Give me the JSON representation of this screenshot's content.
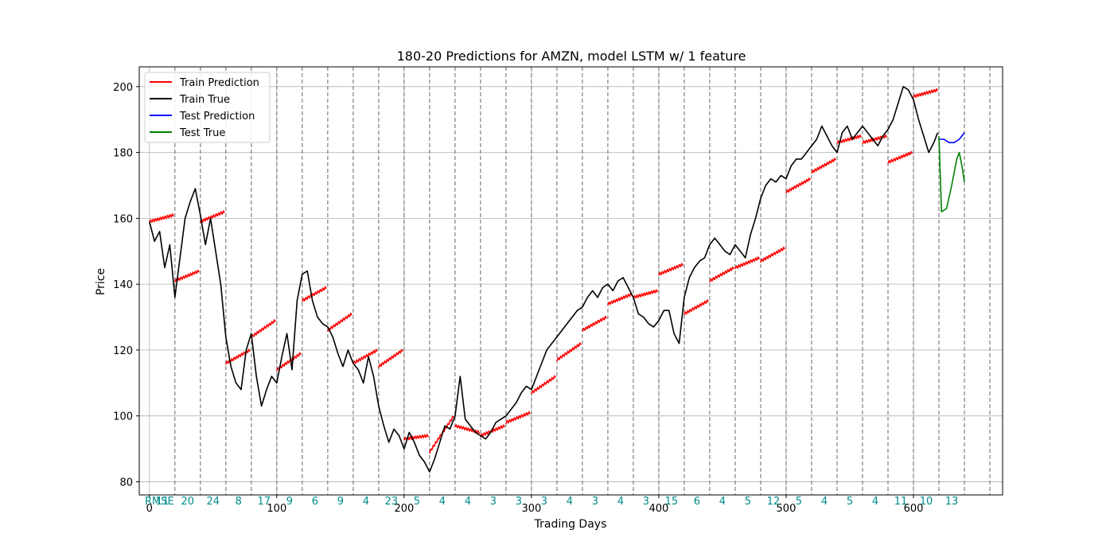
{
  "chart_data": {
    "type": "line",
    "title": "180-20 Predictions for AMZN, model LSTM w/ 1 feature",
    "xlabel": "Trading Days",
    "ylabel": "Price",
    "xlim": [
      -8,
      670
    ],
    "ylim": [
      76,
      206
    ],
    "xticks": [
      0,
      100,
      200,
      300,
      400,
      500,
      600
    ],
    "yticks": [
      80,
      100,
      120,
      140,
      160,
      180,
      200
    ],
    "grid": true,
    "legend_position": "top-left",
    "window_boundaries": [
      20,
      40,
      60,
      80,
      100,
      120,
      140,
      160,
      180,
      200,
      220,
      240,
      260,
      280,
      300,
      320,
      340,
      360,
      380,
      400,
      420,
      440,
      460,
      480,
      500,
      520,
      540,
      560,
      580,
      600,
      620,
      640,
      660
    ],
    "rmse_label": "RMSE",
    "rmse_values": [
      "11",
      "20",
      "24",
      "8",
      "17",
      "9",
      "6",
      "9",
      "4",
      "23",
      "5",
      "4",
      "4",
      "3",
      "3",
      "3",
      "4",
      "3",
      "4",
      "3",
      "15",
      "6",
      "4",
      "5",
      "12",
      "5",
      "4",
      "5",
      "4",
      "11",
      "10",
      "13"
    ],
    "series": [
      {
        "name": "Train Prediction",
        "color": "#ff0000",
        "points": [
          [
            0,
            159
          ],
          [
            19,
            161
          ],
          [
            20,
            141
          ],
          [
            39,
            144
          ],
          [
            40,
            159
          ],
          [
            59,
            162
          ],
          [
            60,
            116
          ],
          [
            79,
            120
          ],
          [
            80,
            124
          ],
          [
            99,
            129
          ],
          [
            100,
            114
          ],
          [
            119,
            119
          ],
          [
            120,
            135
          ],
          [
            139,
            139
          ],
          [
            140,
            126
          ],
          [
            159,
            131
          ],
          [
            160,
            116
          ],
          [
            179,
            120
          ],
          [
            180,
            115
          ],
          [
            199,
            120
          ],
          [
            200,
            93
          ],
          [
            219,
            94
          ],
          [
            220,
            89
          ],
          [
            239,
            100
          ],
          [
            240,
            97
          ],
          [
            259,
            95
          ],
          [
            260,
            94
          ],
          [
            279,
            97
          ],
          [
            280,
            98
          ],
          [
            299,
            101
          ],
          [
            300,
            107
          ],
          [
            319,
            112
          ],
          [
            320,
            117
          ],
          [
            339,
            122
          ],
          [
            340,
            126
          ],
          [
            359,
            130
          ],
          [
            360,
            134
          ],
          [
            379,
            137
          ],
          [
            380,
            136
          ],
          [
            399,
            138
          ],
          [
            400,
            143
          ],
          [
            419,
            146
          ],
          [
            420,
            131
          ],
          [
            439,
            135
          ],
          [
            440,
            141
          ],
          [
            459,
            145
          ],
          [
            460,
            145
          ],
          [
            479,
            148
          ],
          [
            480,
            147
          ],
          [
            499,
            151
          ],
          [
            500,
            168
          ],
          [
            519,
            172
          ],
          [
            520,
            174
          ],
          [
            539,
            178
          ],
          [
            540,
            183
          ],
          [
            559,
            185
          ],
          [
            560,
            183
          ],
          [
            579,
            185
          ],
          [
            580,
            177
          ],
          [
            599,
            180
          ],
          [
            600,
            197
          ],
          [
            619,
            199
          ]
        ]
      },
      {
        "name": "Train True",
        "color": "#000000",
        "points": [
          [
            0,
            159
          ],
          [
            4,
            153
          ],
          [
            8,
            156
          ],
          [
            12,
            145
          ],
          [
            16,
            152
          ],
          [
            20,
            136
          ],
          [
            24,
            148
          ],
          [
            28,
            160
          ],
          [
            32,
            165
          ],
          [
            36,
            169
          ],
          [
            40,
            161
          ],
          [
            44,
            152
          ],
          [
            48,
            160
          ],
          [
            52,
            150
          ],
          [
            56,
            140
          ],
          [
            60,
            124
          ],
          [
            64,
            115
          ],
          [
            68,
            110
          ],
          [
            72,
            108
          ],
          [
            76,
            120
          ],
          [
            80,
            125
          ],
          [
            84,
            112
          ],
          [
            88,
            103
          ],
          [
            92,
            108
          ],
          [
            96,
            112
          ],
          [
            100,
            110
          ],
          [
            104,
            118
          ],
          [
            108,
            125
          ],
          [
            112,
            114
          ],
          [
            116,
            135
          ],
          [
            120,
            143
          ],
          [
            124,
            144
          ],
          [
            128,
            135
          ],
          [
            132,
            130
          ],
          [
            136,
            128
          ],
          [
            140,
            127
          ],
          [
            144,
            124
          ],
          [
            148,
            119
          ],
          [
            152,
            115
          ],
          [
            156,
            120
          ],
          [
            160,
            116
          ],
          [
            164,
            114
          ],
          [
            168,
            110
          ],
          [
            172,
            118
          ],
          [
            176,
            112
          ],
          [
            180,
            103
          ],
          [
            184,
            97
          ],
          [
            188,
            92
          ],
          [
            192,
            96
          ],
          [
            196,
            94
          ],
          [
            200,
            90
          ],
          [
            204,
            95
          ],
          [
            208,
            92
          ],
          [
            212,
            88
          ],
          [
            216,
            86
          ],
          [
            220,
            83
          ],
          [
            224,
            87
          ],
          [
            228,
            92
          ],
          [
            232,
            97
          ],
          [
            236,
            96
          ],
          [
            240,
            100
          ],
          [
            244,
            112
          ],
          [
            248,
            99
          ],
          [
            252,
            97
          ],
          [
            256,
            95
          ],
          [
            260,
            94
          ],
          [
            264,
            93
          ],
          [
            268,
            95
          ],
          [
            272,
            98
          ],
          [
            276,
            99
          ],
          [
            280,
            100
          ],
          [
            284,
            102
          ],
          [
            288,
            104
          ],
          [
            292,
            107
          ],
          [
            296,
            109
          ],
          [
            300,
            108
          ],
          [
            304,
            112
          ],
          [
            308,
            116
          ],
          [
            312,
            120
          ],
          [
            316,
            122
          ],
          [
            320,
            124
          ],
          [
            324,
            126
          ],
          [
            328,
            128
          ],
          [
            332,
            130
          ],
          [
            336,
            132
          ],
          [
            340,
            133
          ],
          [
            344,
            136
          ],
          [
            348,
            138
          ],
          [
            352,
            136
          ],
          [
            356,
            139
          ],
          [
            360,
            140
          ],
          [
            364,
            138
          ],
          [
            368,
            141
          ],
          [
            372,
            142
          ],
          [
            376,
            139
          ],
          [
            380,
            136
          ],
          [
            384,
            131
          ],
          [
            388,
            130
          ],
          [
            392,
            128
          ],
          [
            396,
            127
          ],
          [
            400,
            129
          ],
          [
            404,
            132
          ],
          [
            408,
            132
          ],
          [
            412,
            125
          ],
          [
            416,
            122
          ],
          [
            420,
            136
          ],
          [
            424,
            142
          ],
          [
            428,
            145
          ],
          [
            432,
            147
          ],
          [
            436,
            148
          ],
          [
            440,
            152
          ],
          [
            444,
            154
          ],
          [
            448,
            152
          ],
          [
            452,
            150
          ],
          [
            456,
            149
          ],
          [
            460,
            152
          ],
          [
            464,
            150
          ],
          [
            468,
            148
          ],
          [
            472,
            155
          ],
          [
            476,
            160
          ],
          [
            480,
            166
          ],
          [
            484,
            170
          ],
          [
            488,
            172
          ],
          [
            492,
            171
          ],
          [
            496,
            173
          ],
          [
            500,
            172
          ],
          [
            504,
            176
          ],
          [
            508,
            178
          ],
          [
            512,
            178
          ],
          [
            516,
            180
          ],
          [
            520,
            182
          ],
          [
            524,
            184
          ],
          [
            528,
            188
          ],
          [
            532,
            185
          ],
          [
            536,
            182
          ],
          [
            540,
            180
          ],
          [
            544,
            186
          ],
          [
            548,
            188
          ],
          [
            552,
            184
          ],
          [
            556,
            186
          ],
          [
            560,
            188
          ],
          [
            564,
            186
          ],
          [
            568,
            184
          ],
          [
            572,
            182
          ],
          [
            576,
            185
          ],
          [
            580,
            187
          ],
          [
            584,
            190
          ],
          [
            588,
            195
          ],
          [
            592,
            200
          ],
          [
            596,
            199
          ],
          [
            600,
            196
          ],
          [
            604,
            190
          ],
          [
            608,
            185
          ],
          [
            612,
            180
          ],
          [
            616,
            183
          ],
          [
            619,
            186
          ]
        ]
      },
      {
        "name": "Test Prediction",
        "color": "#0000ff",
        "points": [
          [
            620,
            184
          ],
          [
            624,
            184
          ],
          [
            628,
            183
          ],
          [
            632,
            183
          ],
          [
            636,
            184
          ],
          [
            640,
            186
          ]
        ]
      },
      {
        "name": "Test True",
        "color": "#008000",
        "points": [
          [
            620,
            185
          ],
          [
            622,
            162
          ],
          [
            626,
            163
          ],
          [
            630,
            170
          ],
          [
            634,
            178
          ],
          [
            636,
            180
          ],
          [
            638,
            176
          ],
          [
            640,
            171
          ]
        ]
      }
    ]
  }
}
